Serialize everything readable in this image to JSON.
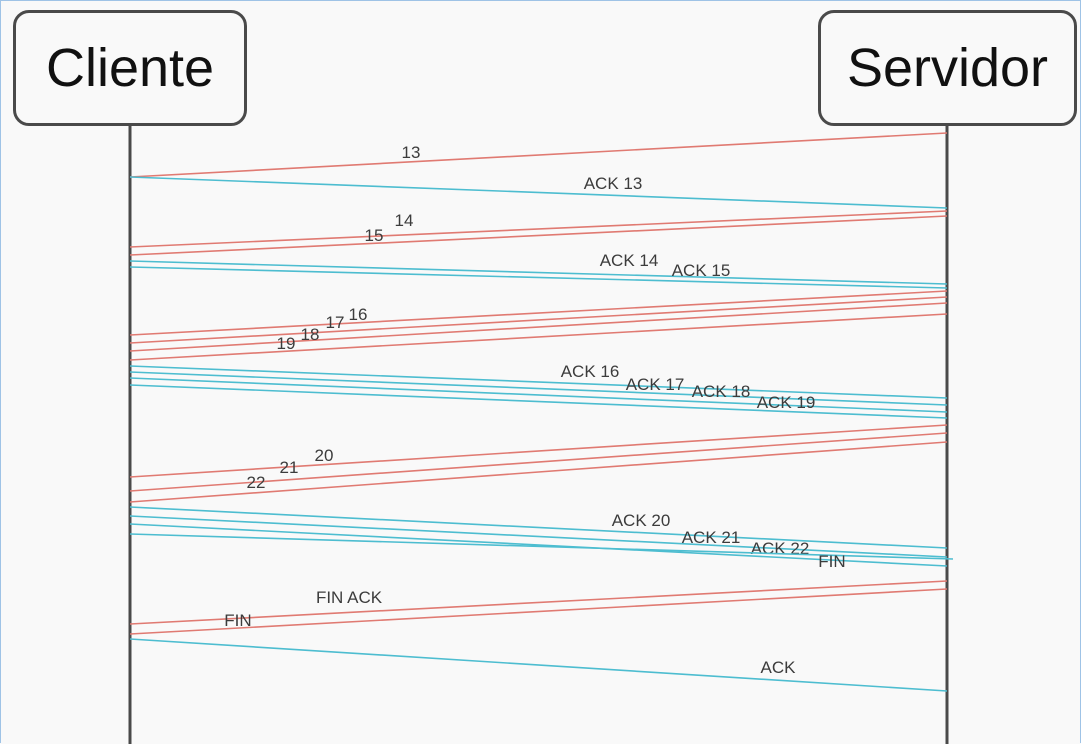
{
  "actors": {
    "client": "Cliente",
    "server": "Servidor"
  },
  "colors": {
    "to_client": "#e07a72",
    "to_server": "#4dbdd0",
    "lifeline": "#4a4a4a"
  },
  "messages": [
    {
      "label": "13",
      "from": "server",
      "to": "client"
    },
    {
      "label": "ACK 13",
      "from": "client",
      "to": "server"
    },
    {
      "label": "14",
      "from": "server",
      "to": "client"
    },
    {
      "label": "15",
      "from": "server",
      "to": "client"
    },
    {
      "label": "ACK 14",
      "from": "client",
      "to": "server"
    },
    {
      "label": "ACK 15",
      "from": "client",
      "to": "server"
    },
    {
      "label": "16",
      "from": "server",
      "to": "client"
    },
    {
      "label": "17",
      "from": "server",
      "to": "client"
    },
    {
      "label": "18",
      "from": "server",
      "to": "client"
    },
    {
      "label": "19",
      "from": "server",
      "to": "client"
    },
    {
      "label": "ACK 16",
      "from": "client",
      "to": "server"
    },
    {
      "label": "ACK 17",
      "from": "client",
      "to": "server"
    },
    {
      "label": "ACK 18",
      "from": "client",
      "to": "server"
    },
    {
      "label": "ACK 19",
      "from": "client",
      "to": "server"
    },
    {
      "label": "20",
      "from": "server",
      "to": "client"
    },
    {
      "label": "21",
      "from": "server",
      "to": "client"
    },
    {
      "label": "22",
      "from": "server",
      "to": "client"
    },
    {
      "label": "ACK 20",
      "from": "client",
      "to": "server"
    },
    {
      "label": "ACK 21",
      "from": "client",
      "to": "server"
    },
    {
      "label": "ACK 22",
      "from": "client",
      "to": "server"
    },
    {
      "label": "FIN",
      "from": "client",
      "to": "server"
    },
    {
      "label": "FIN ACK",
      "from": "server",
      "to": "client"
    },
    {
      "label": "FIN",
      "from": "server",
      "to": "client"
    },
    {
      "label": "ACK",
      "from": "client",
      "to": "server"
    }
  ]
}
